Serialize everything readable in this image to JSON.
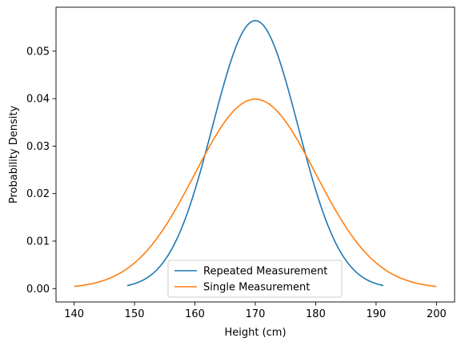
{
  "chart_data": {
    "type": "line",
    "xlabel": "Height (cm)",
    "ylabel": "Probability Density",
    "xlim": [
      137,
      203
    ],
    "ylim": [
      -0.00282,
      0.05925
    ],
    "xticks": [
      140,
      150,
      160,
      170,
      180,
      190,
      200
    ],
    "yticks": [
      0.0,
      0.01,
      0.02,
      0.03,
      0.04,
      0.05
    ],
    "xtick_labels": [
      "140",
      "150",
      "160",
      "170",
      "180",
      "190",
      "200"
    ],
    "ytick_labels": [
      "0.00",
      "0.01",
      "0.02",
      "0.03",
      "0.04",
      "0.05"
    ],
    "grid": false,
    "legend_position": "lower-center",
    "series": [
      {
        "name": "Repeated Measurement",
        "color": "#1f77b4",
        "mean": 170,
        "std": 7.07,
        "x_range": [
          148.8,
          191.2
        ]
      },
      {
        "name": "Single Measurement",
        "color": "#ff7f0e",
        "mean": 170,
        "std": 10,
        "x_range": [
          140,
          200
        ]
      }
    ]
  }
}
